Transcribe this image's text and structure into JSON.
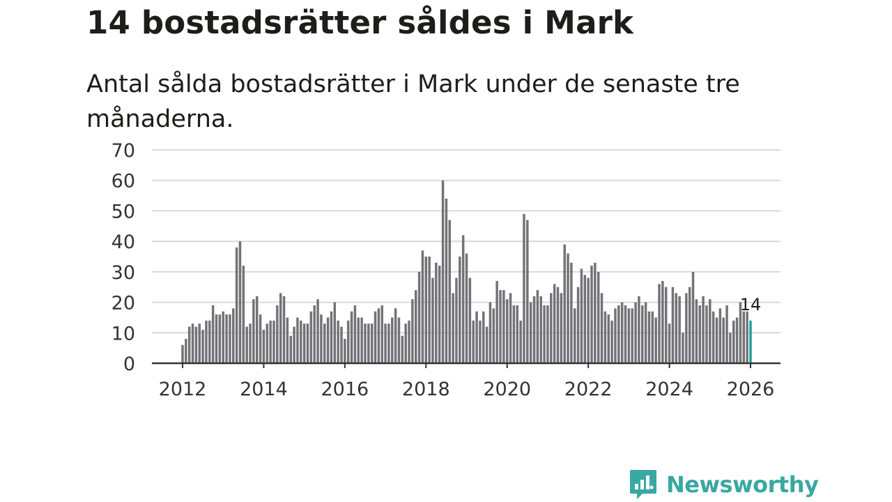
{
  "header": {
    "title": "14 bostadsrätter såldes i Mark",
    "subtitle": "Antal sålda bostadsrätter i Mark under de senaste tre månaderna."
  },
  "colors": {
    "bar": "#737377",
    "highlight": "#1aa39c",
    "grid": "#d9d9d9",
    "axis": "#333333",
    "brand": "#3aa7a2"
  },
  "chart_data": {
    "type": "bar",
    "title": "14 bostadsrätter såldes i Mark",
    "xlabel": "",
    "ylabel": "",
    "ylim": [
      0,
      70
    ],
    "yticks": [
      "0",
      "10",
      "20",
      "30",
      "40",
      "50",
      "60",
      "70"
    ],
    "xticks": [
      "2012",
      "2014",
      "2016",
      "2018",
      "2020",
      "2022",
      "2024",
      "2026"
    ],
    "xlim": [
      2012,
      2026
    ],
    "grid": true,
    "start_period": "2012-01",
    "end_period": "2025-12",
    "highlight_last": true,
    "highlight_label": "14",
    "values": [
      6,
      8,
      12,
      13,
      12,
      13,
      11,
      14,
      14,
      19,
      16,
      16,
      17,
      16,
      16,
      18,
      38,
      40,
      32,
      12,
      13,
      21,
      22,
      16,
      11,
      13,
      14,
      14,
      19,
      23,
      22,
      15,
      9,
      12,
      15,
      14,
      13,
      13,
      17,
      19,
      21,
      16,
      13,
      15,
      17,
      20,
      14,
      12,
      8,
      14,
      17,
      19,
      15,
      15,
      13,
      13,
      13,
      17,
      18,
      19,
      13,
      13,
      15,
      18,
      15,
      9,
      13,
      14,
      21,
      24,
      30,
      37,
      35,
      35,
      28,
      33,
      32,
      60,
      54,
      47,
      23,
      28,
      35,
      42,
      36,
      28,
      14,
      17,
      14,
      17,
      12,
      20,
      18,
      27,
      24,
      24,
      21,
      23,
      19,
      19,
      14,
      49,
      47,
      20,
      22,
      24,
      22,
      19,
      19,
      23,
      26,
      25,
      23,
      39,
      36,
      33,
      18,
      25,
      31,
      29,
      28,
      32,
      33,
      30,
      23,
      17,
      16,
      14,
      18,
      19,
      20,
      19,
      18,
      18,
      20,
      22,
      19,
      20,
      17,
      17,
      15,
      26,
      27,
      25,
      13,
      25,
      23,
      22,
      10,
      23,
      25,
      30,
      21,
      19,
      22,
      19,
      21,
      17,
      15,
      18,
      15,
      19,
      10,
      14,
      15,
      20,
      17,
      17,
      14
    ]
  },
  "brand": {
    "name": "Newsworthy"
  }
}
